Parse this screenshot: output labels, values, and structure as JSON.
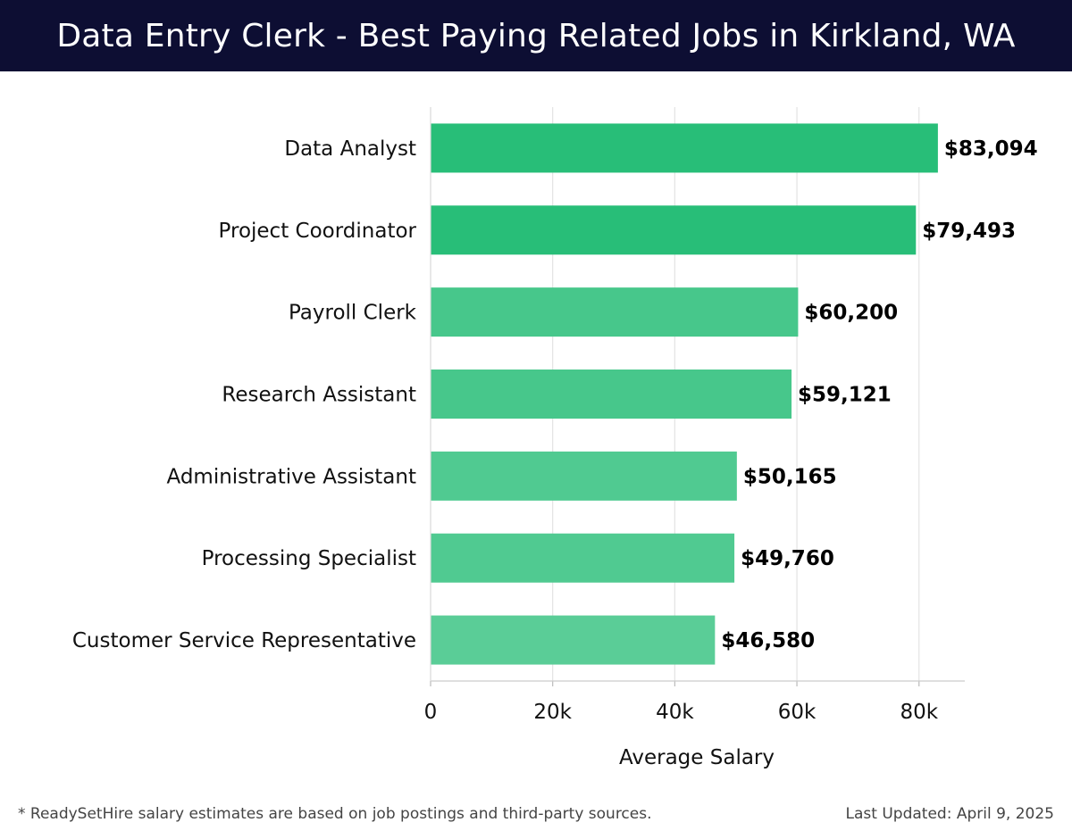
{
  "header": {
    "title": "Data Entry Clerk - Best Paying Related Jobs in Kirkland, WA"
  },
  "chart_data": {
    "type": "bar",
    "orientation": "horizontal",
    "title": "Data Entry Clerk - Best Paying Related Jobs in Kirkland, WA",
    "categories": [
      "Data Analyst",
      "Project Coordinator",
      "Payroll Clerk",
      "Research Assistant",
      "Administrative Assistant",
      "Processing Specialist",
      "Customer Service Representative"
    ],
    "values": [
      83094,
      79493,
      60200,
      59121,
      50165,
      49760,
      46580
    ],
    "value_labels": [
      "$83,094",
      "$79,493",
      "$60,200",
      "$59,121",
      "$50,165",
      "$49,760",
      "$46,580"
    ],
    "xlabel": "Average Salary",
    "ylabel": "",
    "xlim": [
      0,
      87500
    ],
    "x_ticks": [
      0,
      20000,
      40000,
      60000,
      80000
    ],
    "x_tick_labels": [
      "0",
      "20k",
      "40k",
      "60k",
      "80k"
    ],
    "grid": true,
    "colors": {
      "top": "#28be78",
      "high": "#47c78b",
      "mid": "#50ca91",
      "low": "#5acd97"
    },
    "bar_colors": [
      "#28be78",
      "#28be78",
      "#47c78b",
      "#47c78b",
      "#50ca91",
      "#50ca91",
      "#5acd97"
    ]
  },
  "footer": {
    "note": "* ReadySetHire salary estimates are based on job postings and third-party sources.",
    "updated": "Last Updated: April 9, 2025"
  }
}
